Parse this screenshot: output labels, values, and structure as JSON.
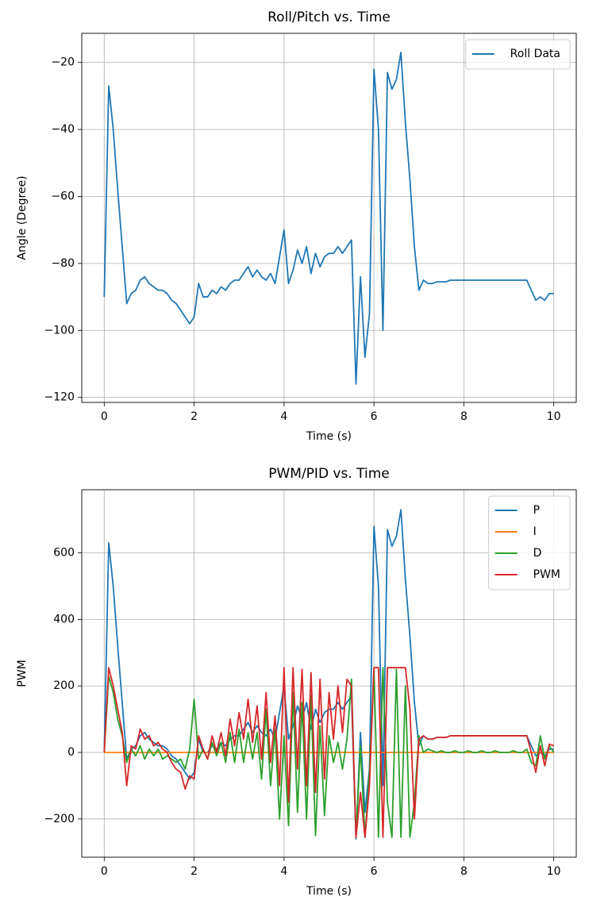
{
  "chart_data": [
    {
      "type": "line",
      "title": "Roll/Pitch vs. Time",
      "xlabel": "Time (s)",
      "ylabel": "Angle (Degree)",
      "x": [
        0,
        0.1,
        0.2,
        0.3,
        0.4,
        0.5,
        0.6,
        0.7,
        0.8,
        0.9,
        1,
        1.1,
        1.2,
        1.3,
        1.4,
        1.5,
        1.6,
        1.7,
        1.8,
        1.9,
        2,
        2.1,
        2.2,
        2.3,
        2.4,
        2.5,
        2.6,
        2.7,
        2.8,
        2.9,
        3,
        3.1,
        3.2,
        3.3,
        3.4,
        3.5,
        3.6,
        3.7,
        3.8,
        3.9,
        4,
        4.1,
        4.2,
        4.3,
        4.4,
        4.5,
        4.6,
        4.7,
        4.8,
        4.9,
        5,
        5.1,
        5.2,
        5.3,
        5.4,
        5.5,
        5.6,
        5.7,
        5.8,
        5.9,
        6,
        6.1,
        6.2,
        6.3,
        6.4,
        6.5,
        6.6,
        6.7,
        6.8,
        6.9,
        7,
        7.1,
        7.2,
        7.3,
        7.4,
        7.5,
        7.6,
        7.7,
        7.8,
        7.9,
        8,
        8.1,
        8.2,
        8.3,
        8.4,
        8.5,
        8.6,
        8.7,
        8.8,
        8.9,
        9,
        9.1,
        9.2,
        9.3,
        9.4,
        9.5,
        9.6,
        9.7,
        9.8,
        9.9,
        10
      ],
      "series": [
        {
          "name": "Roll Data",
          "color": "#1f77b4",
          "values": [
            -90,
            -27,
            -40,
            -58,
            -75,
            -92,
            -89,
            -88,
            -85,
            -84,
            -86,
            -87,
            -88,
            -88,
            -89,
            -91,
            -92,
            -94,
            -96,
            -98,
            -96,
            -86,
            -90,
            -90,
            -88,
            -89,
            -87,
            -88,
            -86,
            -85,
            -85,
            -83,
            -81,
            -84,
            -82,
            -84,
            -85,
            -83,
            -86,
            -78,
            -70,
            -86,
            -82,
            -76,
            -80,
            -75,
            -83,
            -77,
            -81,
            -78,
            -77,
            -77,
            -75,
            -77,
            -75,
            -73,
            -116,
            -84,
            -108,
            -95,
            -22,
            -40,
            -100,
            -23,
            -28,
            -25,
            -17,
            -38,
            -55,
            -75,
            -88,
            -85,
            -86,
            -86,
            -85.5,
            -85.5,
            -85.5,
            -85,
            -85,
            -85,
            -85,
            -85,
            -85,
            -85,
            -85,
            -85,
            -85,
            -85,
            -85,
            -85,
            -85,
            -85,
            -85,
            -85,
            -85,
            -88,
            -91,
            -90,
            -91,
            -89,
            -89
          ]
        }
      ],
      "xlim": [
        -0.5,
        10.5
      ],
      "ylim": [
        -121.5,
        -11.3
      ],
      "xticks": [
        0,
        2,
        4,
        6,
        8,
        10
      ],
      "yticks": [
        {
          "value": -120,
          "label": "−120"
        },
        {
          "value": -100,
          "label": "−100"
        },
        {
          "value": -80,
          "label": "−80"
        },
        {
          "value": -60,
          "label": "−60"
        },
        {
          "value": -40,
          "label": "−40"
        },
        {
          "value": -20,
          "label": "−20"
        }
      ],
      "grid": true,
      "legend": "upper right"
    },
    {
      "type": "line",
      "title": "PWM/PID vs. Time",
      "xlabel": "Time (s)",
      "ylabel": "PWM",
      "x": [
        0,
        0.1,
        0.2,
        0.3,
        0.4,
        0.5,
        0.6,
        0.7,
        0.8,
        0.9,
        1,
        1.1,
        1.2,
        1.3,
        1.4,
        1.5,
        1.6,
        1.7,
        1.8,
        1.9,
        2,
        2.1,
        2.2,
        2.3,
        2.4,
        2.5,
        2.6,
        2.7,
        2.8,
        2.9,
        3,
        3.1,
        3.2,
        3.3,
        3.4,
        3.5,
        3.6,
        3.7,
        3.8,
        3.9,
        4,
        4.1,
        4.2,
        4.3,
        4.4,
        4.5,
        4.6,
        4.7,
        4.8,
        4.9,
        5,
        5.1,
        5.2,
        5.3,
        5.4,
        5.5,
        5.6,
        5.7,
        5.8,
        5.9,
        6,
        6.1,
        6.2,
        6.3,
        6.4,
        6.5,
        6.6,
        6.7,
        6.8,
        6.9,
        7,
        7.1,
        7.2,
        7.3,
        7.4,
        7.5,
        7.6,
        7.7,
        7.8,
        7.9,
        8,
        8.1,
        8.2,
        8.3,
        8.4,
        8.5,
        8.6,
        8.7,
        8.8,
        8.9,
        9,
        9.1,
        9.2,
        9.3,
        9.4,
        9.5,
        9.6,
        9.7,
        9.8,
        9.9,
        10
      ],
      "series": [
        {
          "name": "P",
          "color": "#1f77b4",
          "values": [
            0,
            630,
            500,
            320,
            150,
            -20,
            10,
            20,
            50,
            60,
            40,
            30,
            20,
            20,
            10,
            -10,
            -20,
            -40,
            -60,
            -80,
            -60,
            40,
            0,
            0,
            20,
            10,
            30,
            20,
            40,
            50,
            50,
            70,
            90,
            60,
            80,
            60,
            50,
            70,
            40,
            120,
            200,
            40,
            80,
            140,
            100,
            150,
            70,
            130,
            90,
            120,
            130,
            130,
            150,
            130,
            150,
            170,
            -260,
            60,
            -180,
            -50,
            680,
            500,
            -100,
            670,
            620,
            650,
            730,
            520,
            350,
            150,
            20,
            50,
            40,
            40,
            45,
            45,
            45,
            50,
            50,
            50,
            50,
            50,
            50,
            50,
            50,
            50,
            50,
            50,
            50,
            50,
            50,
            50,
            50,
            50,
            50,
            20,
            -10,
            0,
            -10,
            10,
            10
          ]
        },
        {
          "name": "I",
          "color": "#ff7f0e",
          "values": [
            0,
            0,
            0,
            0,
            0,
            0,
            0,
            0,
            0,
            0,
            0,
            0,
            0,
            0,
            0,
            0,
            0,
            0,
            0,
            0,
            0,
            0,
            0,
            0,
            0,
            0,
            0,
            0,
            0,
            0,
            0,
            0,
            0,
            0,
            0,
            0,
            0,
            0,
            0,
            0,
            0,
            0,
            0,
            0,
            0,
            0,
            0,
            0,
            0,
            0,
            0,
            0,
            0,
            0,
            0,
            0,
            0,
            0,
            0,
            0,
            0,
            0,
            0,
            0,
            0,
            0,
            0,
            0,
            0,
            0,
            0,
            0,
            0,
            0,
            0,
            0,
            0,
            0,
            0,
            0,
            0,
            0,
            0,
            0,
            0,
            0,
            0,
            0,
            0,
            0,
            0,
            0,
            0,
            0,
            0,
            0,
            0,
            0,
            0,
            0,
            0
          ]
        },
        {
          "name": "D",
          "color": "#2ca02c",
          "values": [
            0,
            230,
            180,
            100,
            50,
            -30,
            10,
            -10,
            20,
            -20,
            10,
            -10,
            10,
            -20,
            -10,
            -20,
            -30,
            -20,
            -50,
            10,
            160,
            -20,
            10,
            -20,
            30,
            -10,
            30,
            -30,
            60,
            -30,
            70,
            -30,
            60,
            -20,
            60,
            -80,
            130,
            -100,
            70,
            -200,
            50,
            -220,
            180,
            -180,
            150,
            -200,
            170,
            -250,
            80,
            -190,
            50,
            -30,
            30,
            -50,
            40,
            220,
            -255,
            20,
            -255,
            -60,
            255,
            -255,
            255,
            -150,
            -255,
            250,
            -255,
            200,
            -255,
            -150,
            50,
            0,
            10,
            5,
            0,
            5,
            0,
            0,
            5,
            0,
            0,
            5,
            0,
            0,
            5,
            0,
            0,
            5,
            0,
            0,
            0,
            5,
            0,
            0,
            10,
            -30,
            -40,
            50,
            -20,
            20,
            0
          ]
        },
        {
          "name": "PWM",
          "color": "#d62728",
          "values": [
            0,
            255,
            200,
            130,
            60,
            -100,
            20,
            10,
            70,
            40,
            50,
            20,
            30,
            10,
            0,
            -30,
            -50,
            -60,
            -110,
            -70,
            -80,
            50,
            10,
            -20,
            50,
            0,
            60,
            -10,
            100,
            20,
            120,
            40,
            160,
            30,
            140,
            -20,
            180,
            -30,
            110,
            -100,
            255,
            -150,
            255,
            -50,
            250,
            -100,
            240,
            -120,
            220,
            -80,
            180,
            40,
            200,
            60,
            220,
            200,
            -255,
            -120,
            -255,
            -100,
            255,
            255,
            -255,
            255,
            255,
            255,
            255,
            255,
            130,
            -200,
            40,
            50,
            40,
            40,
            45,
            45,
            45,
            50,
            50,
            50,
            50,
            50,
            50,
            50,
            50,
            50,
            50,
            50,
            50,
            50,
            50,
            50,
            50,
            50,
            50,
            0,
            -60,
            20,
            -40,
            25,
            20
          ]
        }
      ],
      "xlim": [
        -0.5,
        10.5
      ],
      "ylim": [
        -315,
        790
      ],
      "xticks": [
        0,
        2,
        4,
        6,
        8,
        10
      ],
      "yticks": [
        {
          "value": -200,
          "label": "−200"
        },
        0,
        200,
        400,
        600
      ],
      "grid": true,
      "legend": "upper right"
    }
  ]
}
